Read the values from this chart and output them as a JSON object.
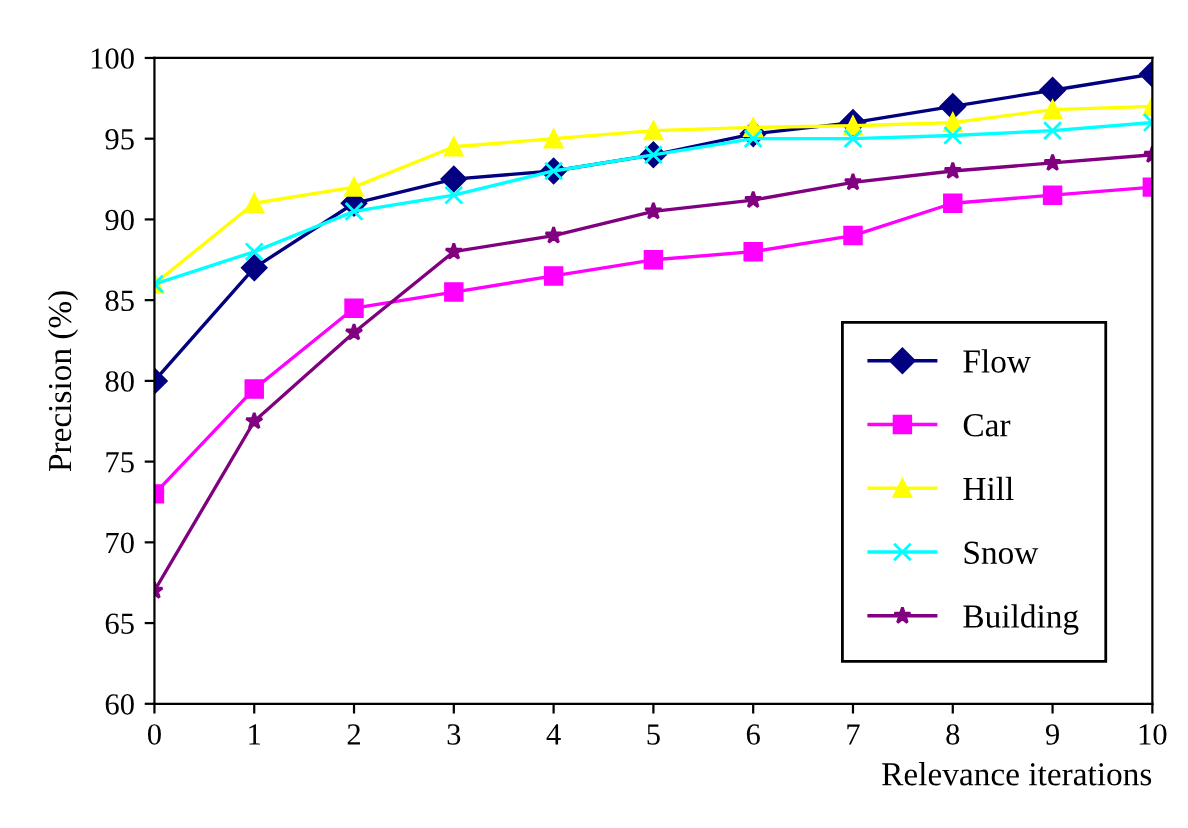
{
  "chart_data": {
    "type": "line",
    "xlabel": "Relevance iterations",
    "ylabel": "Precision (%)",
    "x": [
      0,
      1,
      2,
      3,
      4,
      5,
      6,
      7,
      8,
      9,
      10
    ],
    "series": [
      {
        "name": "Flow",
        "color": "#000080",
        "marker": "diamond",
        "values": [
          80,
          87,
          91,
          92.5,
          93,
          94,
          95.3,
          96,
          97,
          98,
          99
        ]
      },
      {
        "name": "Car",
        "color": "#ff00ff",
        "marker": "square",
        "values": [
          73,
          79.5,
          84.5,
          85.5,
          86.5,
          87.5,
          88,
          89,
          91,
          91.5,
          92
        ]
      },
      {
        "name": "Hill",
        "color": "#ffff00",
        "marker": "triangle",
        "values": [
          86,
          91,
          92,
          94.5,
          95,
          95.5,
          95.7,
          95.8,
          96,
          96.8,
          97
        ]
      },
      {
        "name": "Snow",
        "color": "#00ffff",
        "marker": "cross",
        "values": [
          86,
          88,
          90.5,
          91.5,
          93,
          94,
          95,
          95,
          95.2,
          95.5,
          96
        ]
      },
      {
        "name": "Building",
        "color": "#800080",
        "marker": "star",
        "values": [
          67,
          77.5,
          83,
          88,
          89,
          90.5,
          91.2,
          92.3,
          93,
          93.5,
          94
        ]
      }
    ],
    "xlim": [
      0,
      10
    ],
    "xticks": [
      0,
      1,
      2,
      3,
      4,
      5,
      6,
      7,
      8,
      9,
      10
    ],
    "ylim": [
      60,
      100
    ],
    "yticks": [
      60,
      65,
      70,
      75,
      80,
      85,
      90,
      95,
      100
    ],
    "legend": "bottom right",
    "grid": false,
    "line_style": "solid"
  }
}
